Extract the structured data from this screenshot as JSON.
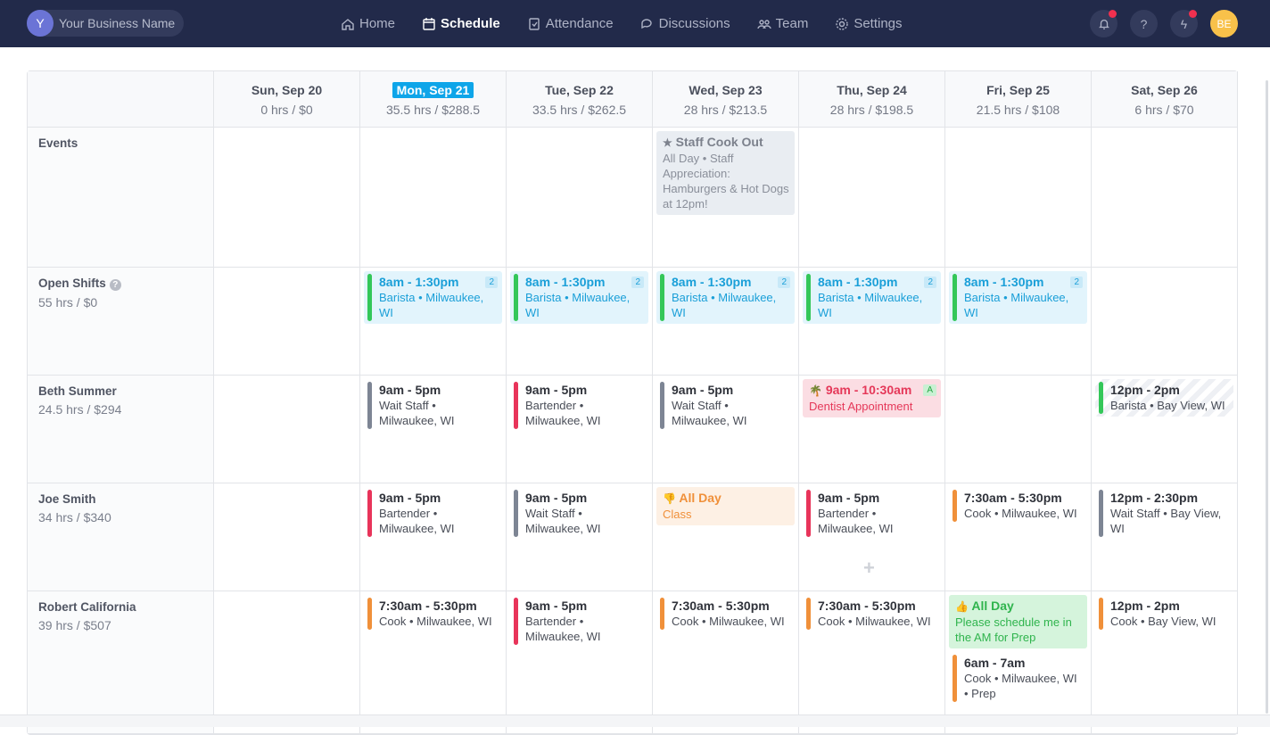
{
  "nav": {
    "business_initial": "Y",
    "business_name": "Your Business Name",
    "items": [
      {
        "label": "Home",
        "icon": "home-icon"
      },
      {
        "label": "Schedule",
        "icon": "calendar-icon",
        "active": true
      },
      {
        "label": "Attendance",
        "icon": "clipboard-check-icon"
      },
      {
        "label": "Discussions",
        "icon": "chat-icon"
      },
      {
        "label": "Team",
        "icon": "team-icon"
      },
      {
        "label": "Settings",
        "icon": "gear-icon"
      }
    ],
    "user_initials": "BE"
  },
  "colors": {
    "nav_bg": "#222a4a",
    "today": "#0ea5e9",
    "open_bar": "#34c759",
    "gray_bar": "#7d8594",
    "red_bar": "#e8345a",
    "orange_bar": "#f0903a"
  },
  "days": [
    {
      "date": "Sun, Sep 20",
      "summary": "0 hrs / $0"
    },
    {
      "date": "Mon, Sep 21",
      "summary": "35.5 hrs / $288.5",
      "today": true
    },
    {
      "date": "Tue, Sep 22",
      "summary": "33.5 hrs / $262.5"
    },
    {
      "date": "Wed, Sep 23",
      "summary": "28 hrs / $213.5"
    },
    {
      "date": "Thu, Sep 24",
      "summary": "28 hrs / $198.5"
    },
    {
      "date": "Fri, Sep 25",
      "summary": "21.5 hrs / $108"
    },
    {
      "date": "Sat, Sep 26",
      "summary": "6 hrs / $70"
    }
  ],
  "rows": [
    {
      "name": "Events",
      "hours": "",
      "cells": [
        [],
        [],
        [],
        [
          {
            "type": "event",
            "icon": "star-icon",
            "time": "Staff Cook Out",
            "detail": "All Day • Staff Appreciation: Hamburgers & Hot Dogs at 12pm!"
          }
        ],
        [],
        [],
        []
      ]
    },
    {
      "name": "Open Shifts",
      "help": "?",
      "hours": "55 hrs / $0",
      "cells": [
        [],
        [
          {
            "type": "open",
            "bar": "#34c759",
            "time": "8am - 1:30pm",
            "detail": "Barista • Milwaukee, WI",
            "badge": "2"
          }
        ],
        [
          {
            "type": "open",
            "bar": "#34c759",
            "time": "8am - 1:30pm",
            "detail": "Barista • Milwaukee, WI",
            "badge": "2"
          }
        ],
        [
          {
            "type": "open",
            "bar": "#34c759",
            "time": "8am - 1:30pm",
            "detail": "Barista • Milwaukee, WI",
            "badge": "2"
          }
        ],
        [
          {
            "type": "open",
            "bar": "#34c759",
            "time": "8am - 1:30pm",
            "detail": "Barista • Milwaukee, WI",
            "badge": "2"
          }
        ],
        [
          {
            "type": "open",
            "bar": "#34c759",
            "time": "8am - 1:30pm",
            "detail": "Barista • Milwaukee, WI",
            "badge": "2"
          }
        ],
        []
      ]
    },
    {
      "name": "Beth Summer",
      "hours": "24.5 hrs / $294",
      "cells": [
        [],
        [
          {
            "type": "shift",
            "bar": "#7d8594",
            "time": "9am - 5pm",
            "detail": "Wait Staff • Milwaukee, WI"
          }
        ],
        [
          {
            "type": "shift",
            "bar": "#e8345a",
            "time": "9am - 5pm",
            "detail": "Bartender • Milwaukee, WI"
          }
        ],
        [
          {
            "type": "shift",
            "bar": "#7d8594",
            "time": "9am - 5pm",
            "detail": "Wait Staff • Milwaukee, WI"
          }
        ],
        [
          {
            "type": "timeoff",
            "icon": "palm-tree-icon",
            "time": "9am - 10:30am",
            "detail": "Dentist Appointment",
            "badge": "A"
          }
        ],
        [],
        [
          {
            "type": "shift striped",
            "bar": "#34c759",
            "time": "12pm - 2pm",
            "detail": "Barista • Bay View, WI"
          }
        ]
      ]
    },
    {
      "name": "Joe Smith",
      "hours": "34 hrs / $340",
      "cells": [
        [],
        [
          {
            "type": "shift",
            "bar": "#e8345a",
            "time": "9am - 5pm",
            "detail": "Bartender • Milwaukee, WI"
          }
        ],
        [
          {
            "type": "shift",
            "bar": "#7d8594",
            "time": "9am - 5pm",
            "detail": "Wait Staff • Milwaukee, WI"
          }
        ],
        [
          {
            "type": "unavail",
            "icon": "thumbs-down-icon",
            "time": "All Day",
            "detail": "Class"
          }
        ],
        [
          {
            "type": "shift",
            "bar": "#e8345a",
            "time": "9am - 5pm",
            "detail": "Bartender • Milwaukee, WI"
          }
        ],
        [
          {
            "type": "shift",
            "bar": "#f0903a",
            "time": "7:30am - 5:30pm",
            "detail": "Cook • Milwaukee, WI"
          }
        ],
        [
          {
            "type": "shift",
            "bar": "#7d8594",
            "time": "12pm - 2:30pm",
            "detail": "Wait Staff • Bay View, WI"
          }
        ]
      ]
    },
    {
      "name": "Robert California",
      "hours": "39 hrs / $507",
      "cells": [
        [],
        [
          {
            "type": "shift",
            "bar": "#f0903a",
            "time": "7:30am - 5:30pm",
            "detail": "Cook • Milwaukee, WI"
          }
        ],
        [
          {
            "type": "shift",
            "bar": "#e8345a",
            "time": "9am - 5pm",
            "detail": "Bartender • Milwaukee, WI"
          }
        ],
        [
          {
            "type": "shift",
            "bar": "#f0903a",
            "time": "7:30am - 5:30pm",
            "detail": "Cook • Milwaukee, WI"
          }
        ],
        [
          {
            "type": "shift",
            "bar": "#f0903a",
            "time": "7:30am - 5:30pm",
            "detail": "Cook • Milwaukee, WI"
          }
        ],
        [
          {
            "type": "pref",
            "icon": "thumbs-up-icon",
            "time": "All Day",
            "detail": "Please schedule me in the AM for Prep"
          },
          {
            "type": "shift",
            "bar": "#f0903a",
            "time": "6am - 7am",
            "detail": "Cook • Milwaukee, WI • Prep"
          }
        ],
        [
          {
            "type": "shift",
            "bar": "#f0903a",
            "time": "12pm - 2pm",
            "detail": "Cook • Bay View, WI"
          }
        ]
      ]
    }
  ]
}
